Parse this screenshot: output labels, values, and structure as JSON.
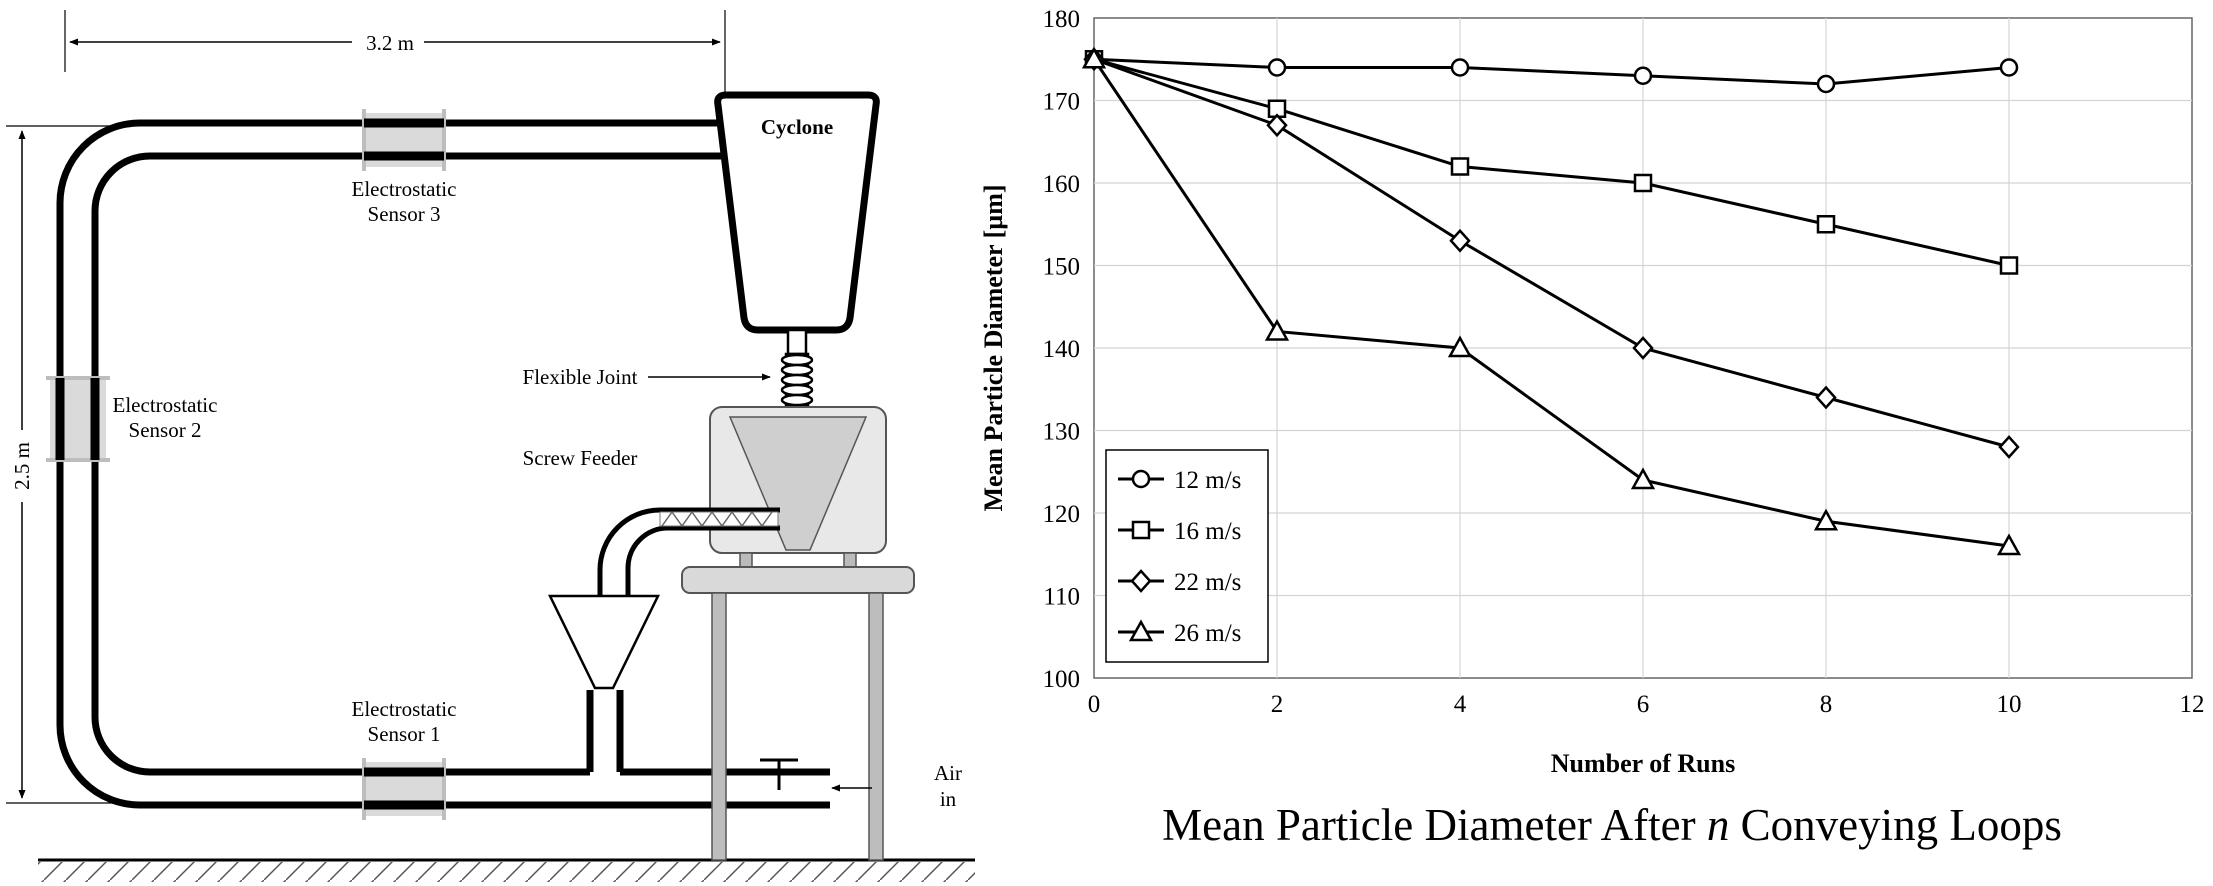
{
  "schematic": {
    "dim_width": "3.2 m",
    "dim_height": "2.5 m",
    "cyclone": "Cyclone",
    "flexible_joint": "Flexible Joint",
    "screw_feeder": "Screw Feeder",
    "sensor1": [
      "Electrostatic",
      "Sensor 1"
    ],
    "sensor2": [
      "Electrostatic",
      "Sensor 2"
    ],
    "sensor3": [
      "Electrostatic",
      "Sensor 3"
    ],
    "air_in": [
      "Air",
      "in"
    ]
  },
  "chart_data": {
    "type": "line",
    "title": "",
    "caption_parts": [
      "Mean Particle Diameter After ",
      "n",
      " Conveying Loops"
    ],
    "xlabel": "Number of Runs",
    "ylabel": "Mean Particle Diameter  [µm]",
    "xlim": [
      0,
      12
    ],
    "ylim": [
      100,
      180
    ],
    "x_ticks": [
      0,
      2,
      4,
      6,
      8,
      10,
      12
    ],
    "y_ticks": [
      100,
      110,
      120,
      130,
      140,
      150,
      160,
      170,
      180
    ],
    "grid": true,
    "legend_position": "bottom-left",
    "x": [
      0,
      2,
      4,
      6,
      8,
      10
    ],
    "series": [
      {
        "name": "12 m/s",
        "marker": "circle",
        "values": [
          175,
          174,
          174,
          173,
          172,
          174
        ]
      },
      {
        "name": "16 m/s",
        "marker": "square",
        "values": [
          175,
          169,
          162,
          160,
          155,
          150
        ]
      },
      {
        "name": "22 m/s",
        "marker": "diamond",
        "values": [
          175,
          167,
          153,
          140,
          134,
          128
        ]
      },
      {
        "name": "26 m/s",
        "marker": "triangle",
        "values": [
          175,
          142,
          140,
          124,
          119,
          116
        ]
      }
    ]
  }
}
